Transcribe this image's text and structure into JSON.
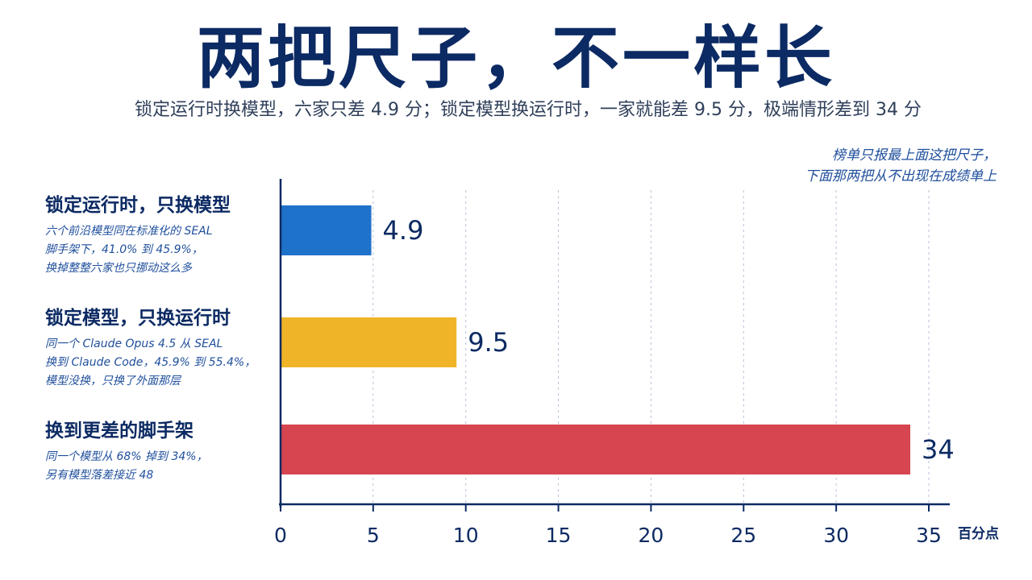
{
  "title": "两把尺子，不一样长",
  "subtitle": "锁定运行时换模型，六家只差 4.9 分；锁定模型换运行时，一家就能差 9.5 分，极端情形差到 34 分",
  "note": {
    "line1": "榜单只报最上面这把尺子，",
    "line2": "下面那两把从不出现在成绩单上"
  },
  "categories": [
    {
      "title": "锁定运行时，只换模型",
      "desc": [
        "六个前沿模型同在标准化的 SEAL",
        "脚手架下，41.0% 到 45.9%，",
        "换掉整整六家也只挪动这么多"
      ]
    },
    {
      "title": "锁定模型，只换运行时",
      "desc": [
        "同一个 Claude Opus 4.5 从 SEAL",
        "换到 Claude Code，45.9% 到 55.4%，",
        "模型没换，只换了外面那层"
      ]
    },
    {
      "title": "换到更差的脚手架",
      "desc": [
        "同一个模型从 68% 掉到 34%，",
        "另有模型落差接近 48"
      ]
    }
  ],
  "chart_data": {
    "type": "bar",
    "orientation": "horizontal",
    "categories": [
      "锁定运行时，只换模型",
      "锁定模型，只换运行时",
      "换到更差的脚手架"
    ],
    "values": [
      4.9,
      9.5,
      34
    ],
    "value_labels": [
      "4.9",
      "9.5",
      "34"
    ],
    "colors": [
      "#1f72c9",
      "#f0b429",
      "#d64550"
    ],
    "xlabel": "百分点",
    "xlim": [
      0,
      35
    ],
    "xticks": [
      0,
      5,
      10,
      15,
      20,
      25,
      30,
      35
    ],
    "grid": "vertical dashed"
  },
  "colors": {
    "axis": "#0c2a63",
    "grid": "#b8c2d8"
  }
}
